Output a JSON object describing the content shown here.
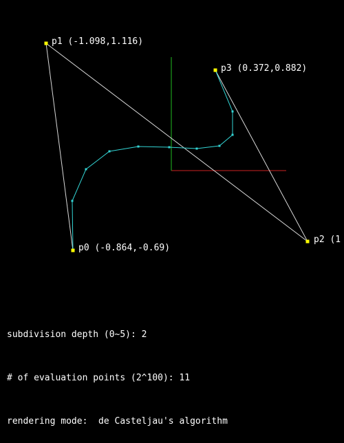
{
  "control_points": [
    {
      "name": "p0",
      "label": "p0 (-0.864,-0.69)"
    },
    {
      "name": "p1",
      "label": "p1 (-1.098,1.116)"
    },
    {
      "name": "p2",
      "label": "p2 (1"
    },
    {
      "name": "p3",
      "label": "p3 (0.372,0.882)"
    }
  ],
  "status": {
    "depth": "subdivision depth (0~5): 2",
    "eval_points": "# of evaluation points (2^100): 11",
    "mode": "rendering mode:  de Casteljau's algorithm"
  },
  "colors": {
    "background": "#000000",
    "control_polygon": "#d9d9d9",
    "curve": "#33d6d6",
    "control_point": "#ffff00",
    "x_axis": "#cc2222",
    "y_axis": "#22bb22",
    "text": "#ffffff"
  }
}
